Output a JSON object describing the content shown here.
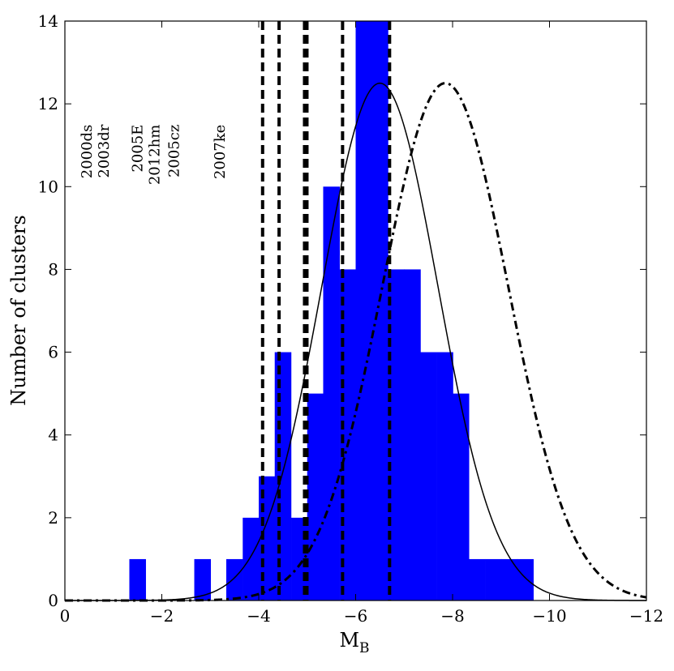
{
  "chart_data": {
    "type": "bar",
    "xlabel": "M",
    "xlabel_subscript": "B",
    "ylabel": "Number of clusters",
    "xlim": [
      0,
      -12
    ],
    "ylim": [
      0,
      14
    ],
    "x_ticks": [
      0,
      -2,
      -4,
      -6,
      -8,
      -10,
      -12
    ],
    "x_tick_labels": [
      "0",
      "−2",
      "−4",
      "−6",
      "−8",
      "−10",
      "−12"
    ],
    "y_ticks": [
      0,
      2,
      4,
      6,
      8,
      10,
      12,
      14
    ],
    "y_tick_labels": [
      "0",
      "2",
      "4",
      "6",
      "8",
      "10",
      "12",
      "14"
    ],
    "bar_color": "#0000ff",
    "bin_width": 0.333,
    "histogram": [
      {
        "x0": -1.33,
        "count": 1
      },
      {
        "x0": -2.67,
        "count": 1
      },
      {
        "x0": -3.33,
        "count": 1
      },
      {
        "x0": -3.67,
        "count": 2
      },
      {
        "x0": -4.0,
        "count": 3
      },
      {
        "x0": -4.33,
        "count": 6
      },
      {
        "x0": -4.67,
        "count": 2
      },
      {
        "x0": -5.0,
        "count": 5
      },
      {
        "x0": -5.33,
        "count": 10
      },
      {
        "x0": -5.67,
        "count": 8
      },
      {
        "x0": -6.0,
        "count": 14
      },
      {
        "x0": -6.33,
        "count": 14
      },
      {
        "x0": -6.67,
        "count": 8
      },
      {
        "x0": -7.0,
        "count": 8
      },
      {
        "x0": -7.33,
        "count": 6
      },
      {
        "x0": -7.67,
        "count": 6
      },
      {
        "x0": -8.0,
        "count": 5
      },
      {
        "x0": -8.33,
        "count": 1
      },
      {
        "x0": -8.67,
        "count": 1
      },
      {
        "x0": -9.0,
        "count": 1
      },
      {
        "x0": -9.33,
        "count": 1
      }
    ],
    "gaussians": [
      {
        "style": "solid",
        "mean": -6.5,
        "sigma": 1.2,
        "amplitude": 12.5
      },
      {
        "style": "dash-dot",
        "mean": -7.85,
        "sigma": 1.3,
        "amplitude": 12.5
      }
    ],
    "vlines": [
      {
        "x": -4.08,
        "width": 4
      },
      {
        "x": -4.42,
        "width": 4
      },
      {
        "x": -4.97,
        "width": 7
      },
      {
        "x": -5.73,
        "width": 4
      },
      {
        "x": -6.7,
        "width": 4
      }
    ],
    "sn_labels": [
      {
        "text": "2000ds",
        "x": -0.55
      },
      {
        "text": "2003dr",
        "x": -0.9
      },
      {
        "text": "2005E",
        "x": -1.6
      },
      {
        "text": "2012hm",
        "x": -1.95
      },
      {
        "text": "2005cz",
        "x": -2.35
      },
      {
        "text": "2007ke",
        "x": -3.3
      }
    ]
  }
}
